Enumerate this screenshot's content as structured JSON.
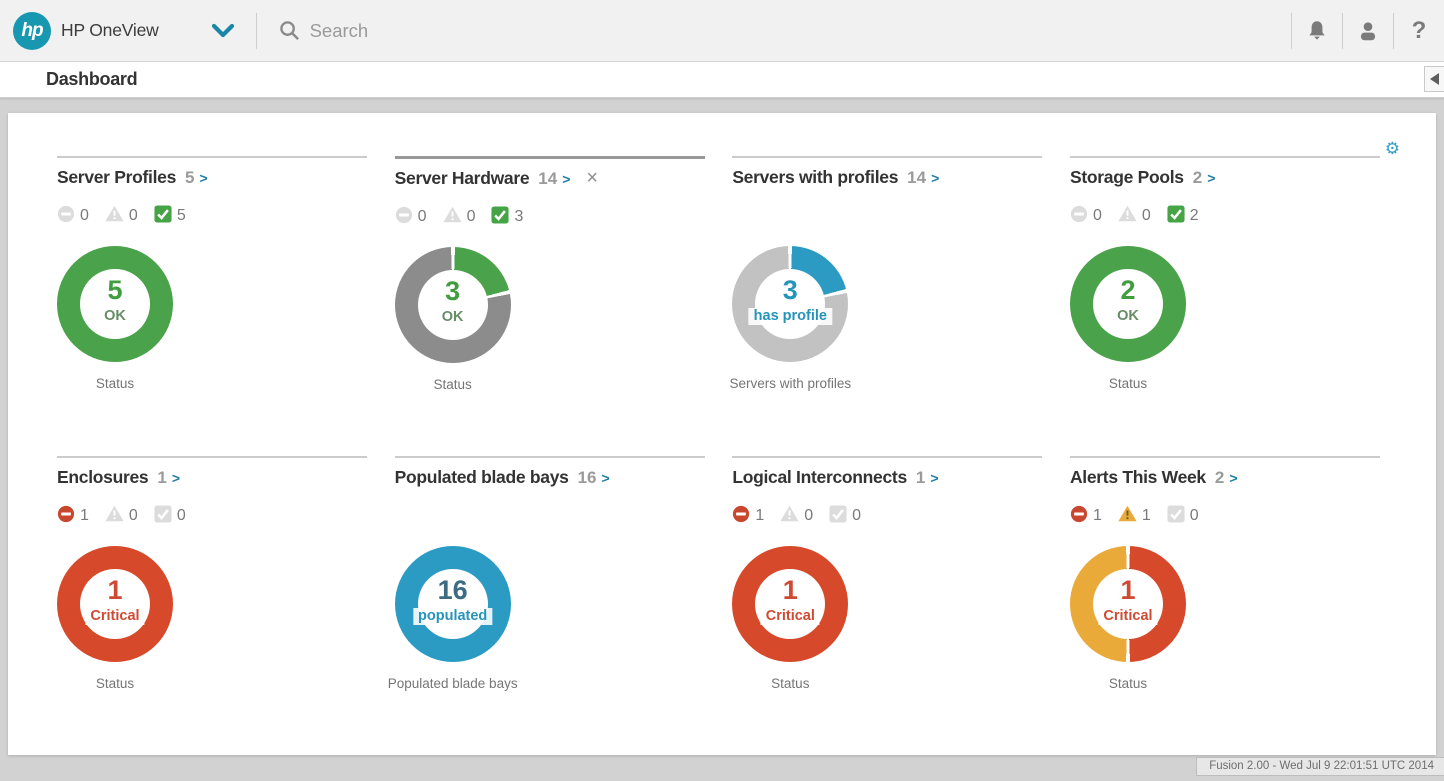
{
  "topbar": {
    "logo_text": "hp",
    "app_name": "HP OneView",
    "search_placeholder": "Search",
    "help_glyph": "?"
  },
  "page_title": "Dashboard",
  "ui": {
    "arrow_glyph": ">",
    "close_glyph": "×",
    "gear_glyph": "⚙"
  },
  "colors": {
    "accent_teal": "#1797b0",
    "link_blue": "#1f7ea6",
    "critical_red": "#c9472e",
    "warning_yellow": "#eaaa39",
    "ok_green": "#46a346",
    "inactive_gray": "#dcdcdc",
    "warning_mark": "#6d5b20"
  },
  "cards": [
    {
      "title": "Server Profiles",
      "count": "5",
      "closable": false,
      "highlight": false,
      "statuses": [
        {
          "type": "critical",
          "count": "0",
          "active": false
        },
        {
          "type": "warning",
          "count": "0",
          "active": false
        },
        {
          "type": "ok",
          "count": "5",
          "active": true
        }
      ],
      "donut": {
        "value": "5",
        "value_color": "#3f9c3f",
        "label": "OK",
        "label_color": "#668d66",
        "caption": "Status",
        "segments": [
          {
            "color": "#4aa24a",
            "fraction": 1
          }
        ]
      }
    },
    {
      "title": "Server Hardware",
      "count": "14",
      "closable": true,
      "highlight": true,
      "statuses": [
        {
          "type": "critical",
          "count": "0",
          "active": false
        },
        {
          "type": "warning",
          "count": "0",
          "active": false
        },
        {
          "type": "ok",
          "count": "3",
          "active": true
        }
      ],
      "donut": {
        "value": "3",
        "value_color": "#3f9c3f",
        "label": "OK",
        "label_color": "#668d66",
        "caption": "Status",
        "segments": [
          {
            "color": "#4aa24a",
            "fraction": 0.214
          },
          {
            "color": "#8c8c8c",
            "fraction": 0.786
          }
        ]
      }
    },
    {
      "title": "Servers with profiles",
      "count": "14",
      "closable": false,
      "highlight": false,
      "statuses": null,
      "donut": {
        "value": "3",
        "value_color": "#2594ba",
        "label": "has profile",
        "label_color": "#2594ba",
        "caption": "Servers with profiles",
        "segments": [
          {
            "color": "#2c9bc4",
            "fraction": 0.214
          },
          {
            "color": "#c2c2c2",
            "fraction": 0.786
          }
        ]
      }
    },
    {
      "title": "Storage Pools",
      "count": "2",
      "closable": false,
      "highlight": false,
      "statuses": [
        {
          "type": "critical",
          "count": "0",
          "active": false
        },
        {
          "type": "warning",
          "count": "0",
          "active": false
        },
        {
          "type": "ok",
          "count": "2",
          "active": true
        }
      ],
      "donut": {
        "value": "2",
        "value_color": "#3f9c3f",
        "label": "OK",
        "label_color": "#668d66",
        "caption": "Status",
        "segments": [
          {
            "color": "#4aa24a",
            "fraction": 1
          }
        ]
      }
    },
    {
      "title": "Enclosures",
      "count": "1",
      "closable": false,
      "highlight": false,
      "statuses": [
        {
          "type": "critical",
          "count": "1",
          "active": true
        },
        {
          "type": "warning",
          "count": "0",
          "active": false
        },
        {
          "type": "ok",
          "count": "0",
          "active": false
        }
      ],
      "donut": {
        "value": "1",
        "value_color": "#cf4a33",
        "label": "Critical",
        "label_color": "#cf4a33",
        "caption": "Status",
        "segments": [
          {
            "color": "#d6492a",
            "fraction": 1
          }
        ]
      }
    },
    {
      "title": "Populated blade bays",
      "count": "16",
      "closable": false,
      "highlight": false,
      "statuses": null,
      "donut": {
        "value": "16",
        "value_color": "#3d6b82",
        "label": "populated",
        "label_color": "#2594ba",
        "caption": "Populated blade bays",
        "segments": [
          {
            "color": "#2c9bc4",
            "fraction": 1
          }
        ]
      }
    },
    {
      "title": "Logical Interconnects",
      "count": "1",
      "closable": false,
      "highlight": false,
      "statuses": [
        {
          "type": "critical",
          "count": "1",
          "active": true
        },
        {
          "type": "warning",
          "count": "0",
          "active": false
        },
        {
          "type": "ok",
          "count": "0",
          "active": false
        }
      ],
      "donut": {
        "value": "1",
        "value_color": "#cf4a33",
        "label": "Critical",
        "label_color": "#cf4a33",
        "caption": "Status",
        "segments": [
          {
            "color": "#d6492a",
            "fraction": 1
          }
        ]
      }
    },
    {
      "title": "Alerts This Week",
      "count": "2",
      "closable": false,
      "highlight": false,
      "statuses": [
        {
          "type": "critical",
          "count": "1",
          "active": true
        },
        {
          "type": "warning",
          "count": "1",
          "active": true
        },
        {
          "type": "ok",
          "count": "0",
          "active": false
        }
      ],
      "donut": {
        "value": "1",
        "value_color": "#cf4a33",
        "label": "Critical",
        "label_color": "#cf4a33",
        "caption": "Status",
        "segments": [
          {
            "color": "#d6492a",
            "fraction": 0.5
          },
          {
            "color": "#eaaa39",
            "fraction": 0.5
          }
        ]
      }
    }
  ],
  "status_bar": {
    "text": "Fusion 2.00 - Wed Jul 9 22:01:51 UTC 2014"
  }
}
